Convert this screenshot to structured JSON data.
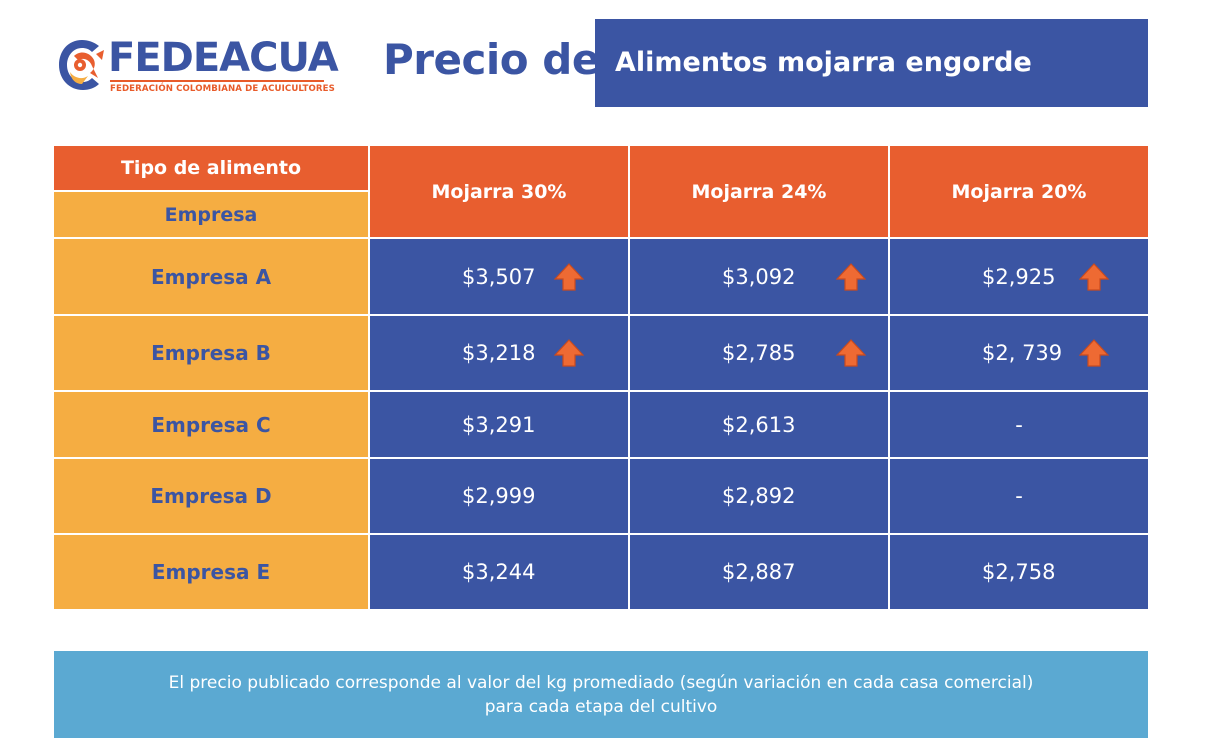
{
  "logo": {
    "name": "FEDEACUA",
    "subtitle": "FEDERACIÓN COLOMBIANA DE ACUICULTORES"
  },
  "title": {
    "prefix": "Precio de",
    "product": "Alimentos mojarra engorde"
  },
  "table": {
    "header_top": "Tipo de alimento",
    "header_sub": "Empresa",
    "columns": [
      "Mojarra 30%",
      "Mojarra 24%",
      "Mojarra 20%"
    ],
    "rows": [
      {
        "label": "Empresa A",
        "values": [
          "$3,507",
          "$3,092",
          "$2,925"
        ],
        "trend_up": [
          true,
          true,
          true
        ]
      },
      {
        "label": "Empresa B",
        "values": [
          "$3,218",
          "$2,785",
          "$2, 739"
        ],
        "trend_up": [
          true,
          true,
          true
        ]
      },
      {
        "label": "Empresa C",
        "values": [
          "$3,291",
          "$2,613",
          "-"
        ],
        "trend_up": [
          false,
          false,
          false
        ]
      },
      {
        "label": "Empresa D",
        "values": [
          "$2,999",
          "$2,892",
          "-"
        ],
        "trend_up": [
          false,
          false,
          false
        ]
      },
      {
        "label": "Empresa E",
        "values": [
          "$3,244",
          "$2,887",
          "$2,758"
        ],
        "trend_up": [
          false,
          false,
          false
        ]
      }
    ],
    "arrow_icon": "arrow-up-icon"
  },
  "note": {
    "line1": "El precio publicado corresponde  al valor del kg promediado (según variación en cada casa comercial)",
    "line2": "para cada etapa del cultivo"
  },
  "colors": {
    "brand_blue": "#3b55a3",
    "header_orange": "#e85e2f",
    "label_yellow": "#f5ad42",
    "note_blue": "#5ba9d2",
    "arrow_orange": "#ee6a33"
  }
}
